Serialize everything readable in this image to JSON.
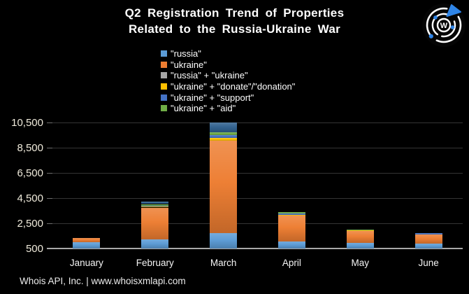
{
  "title": {
    "line1": "Q2 Registration Trend of Properties",
    "line2": "Related to the Russia-Ukraine War"
  },
  "footer": {
    "text": "Whois API, Inc. | www.whoisxmlapi.com"
  },
  "logo": {
    "letter": "W",
    "accent_color": "#2F85E8"
  },
  "colors": {
    "background": "#000000",
    "title_text": "#FFFFFF",
    "y_axis_text": "#F0EBDC",
    "x_axis_text": "#F5F5F5",
    "gridline": "#343434",
    "axis_line": "#A8A8A8"
  },
  "chart_data": {
    "type": "bar",
    "stacked": true,
    "title": "Q2 Registration Trend of Properties Related to the Russia-Ukraine War",
    "xlabel": "",
    "ylabel": "",
    "grid": true,
    "legend_position": "top-left-above-plot",
    "axis": {
      "min": 500,
      "max": 10500,
      "tick_step": 2000,
      "note": "March bar is clipped at the 10,500 axis maximum"
    },
    "y_ticks": [
      {
        "label": "10,500",
        "value": 10500
      },
      {
        "label": "8,500",
        "value": 8500
      },
      {
        "label": "6,500",
        "value": 6500
      },
      {
        "label": "4,500",
        "value": 4500
      },
      {
        "label": "2,500",
        "value": 2500
      },
      {
        "label": "500",
        "value": 500
      }
    ],
    "categories": [
      "January",
      "February",
      "March",
      "April",
      "May",
      "June"
    ],
    "series": [
      {
        "name": "\"russia\"",
        "color": "#5B9BD5",
        "values": [
          1000,
          1250,
          1700,
          1080,
          940,
          890
        ]
      },
      {
        "name": "\"ukraine\"",
        "color": "#ED7D31",
        "values": [
          340,
          2500,
          7350,
          2020,
          950,
          700
        ]
      },
      {
        "name": "\"russia\" + \"ukraine\"",
        "color": "#A5A5A5",
        "values": [
          0,
          0,
          0,
          0,
          0,
          0
        ]
      },
      {
        "name": "\"ukraine\" + \"donate\"/\"donation\"",
        "color": "#FFC000",
        "values": [
          0,
          60,
          220,
          70,
          60,
          0
        ]
      },
      {
        "name": "\"ukraine\" + \"support\"",
        "color": "#4472C4",
        "values": [
          0,
          110,
          230,
          110,
          0,
          110
        ]
      },
      {
        "name": "\"ukraine\" + \"aid\"",
        "color": "#70AD47",
        "values": [
          0,
          110,
          200,
          100,
          50,
          0
        ]
      },
      {
        "name": "\"ukraine\" + \"support\" (dark top segment)",
        "color": "#30618F",
        "values": [
          0,
          170,
          900,
          0,
          0,
          0
        ],
        "in_legend": false
      }
    ],
    "approx_totals": [
      1340,
      4200,
      10600,
      3380,
      2000,
      1700
    ]
  }
}
